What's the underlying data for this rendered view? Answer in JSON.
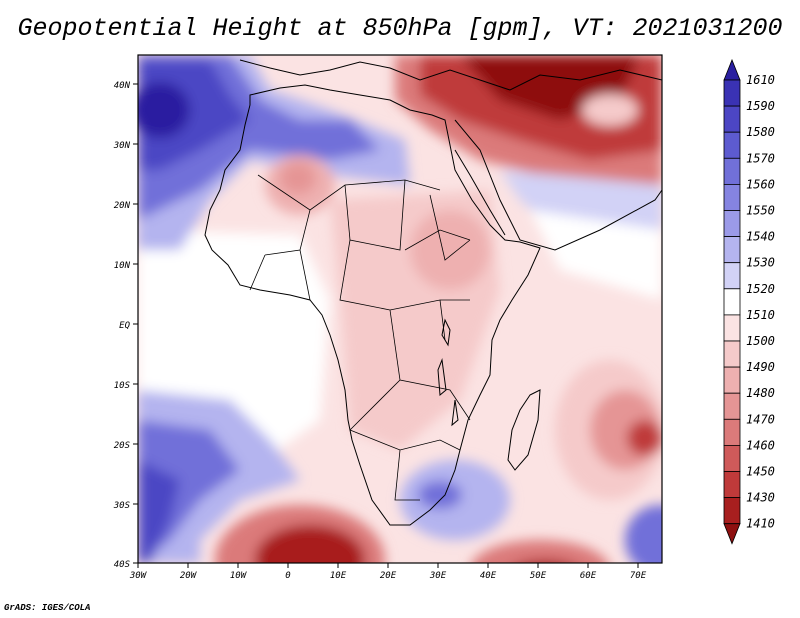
{
  "title": "Geopotential Height at 850hPa [gpm], VT: 2021031200",
  "footer": "GrADS: IGES/COLA",
  "map": {
    "variable": "Geopotential Height",
    "level": "850hPa",
    "units": "gpm",
    "valid_time": "2021031200",
    "lat_ticks": [
      "40N",
      "30N",
      "20N",
      "10N",
      "EQ",
      "10S",
      "20S",
      "30S",
      "40S"
    ],
    "lon_ticks": [
      "30W",
      "20W",
      "10W",
      "0",
      "10E",
      "20E",
      "30E",
      "40E",
      "50E",
      "60E",
      "70E"
    ]
  },
  "colorbar": {
    "levels": [
      "1610",
      "1590",
      "1580",
      "1570",
      "1560",
      "1550",
      "1540",
      "1530",
      "1520",
      "1510",
      "1500",
      "1490",
      "1480",
      "1470",
      "1460",
      "1450",
      "1430",
      "1410"
    ],
    "colors": [
      "#2a1fa0",
      "#3a32b4",
      "#4c46c4",
      "#5d5bd0",
      "#7170d9",
      "#8584e1",
      "#9b9ae8",
      "#b4b4ef",
      "#d2d2f6",
      "#ffffff",
      "#fbe3e3",
      "#f5caca",
      "#eeb0b0",
      "#e59595",
      "#db7a7a",
      "#cf5a5a",
      "#bf3a3a",
      "#a81f1f",
      "#8e1010"
    ]
  }
}
